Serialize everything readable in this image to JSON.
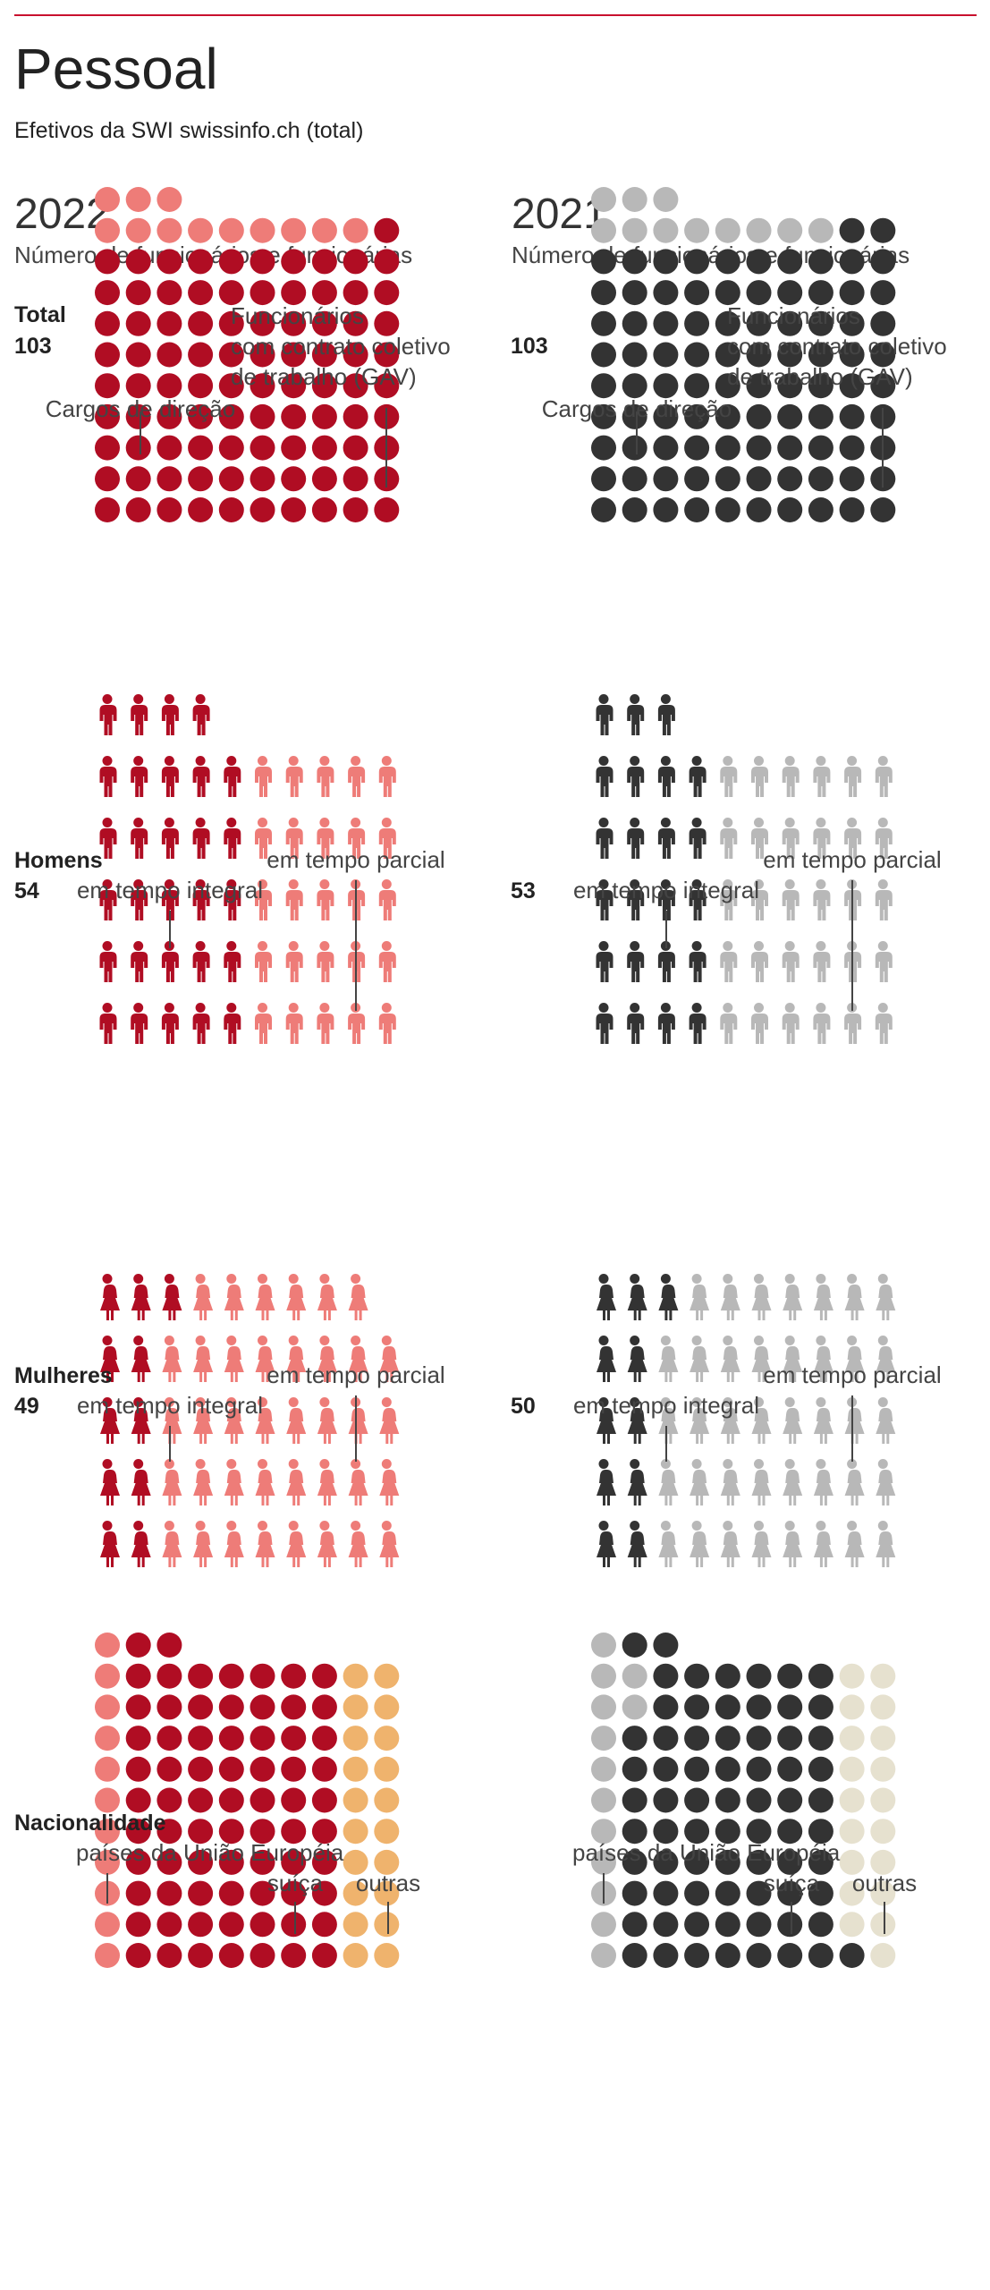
{
  "header": {
    "title": "Pessoal",
    "subtitle": "Efetivos da SWI swissinfo.ch (total)"
  },
  "colors": {
    "accent_2022": "#b00d23",
    "light_2022": "#ee7c78",
    "accent_2021": "#333333",
    "light_2021": "#b8b8b8",
    "others_2022": "#efb36d",
    "others_2021": "#e6e1cf",
    "rule": "#c8102e"
  },
  "chart_data": [
    {
      "type": "icon-array",
      "year": "2022",
      "year_label": "2022",
      "year_subtitle": "Número de funcionários e funcionárias",
      "sections": [
        {
          "id": "total",
          "heading": "Total",
          "value_label": "103",
          "icon": "circle",
          "total": 103,
          "groups": [
            {
              "label": "Cargos de direção",
              "count": 12,
              "color": "light"
            },
            {
              "label": "Funcionários com contrato coletivo de trabalho (GAV)",
              "label_lines": [
                "Funcionários",
                "com contrato coletivo",
                "de trabalho (GAV)"
              ],
              "count": 91,
              "color": "accent"
            }
          ]
        },
        {
          "id": "men",
          "heading": "Homens",
          "value_label": "54",
          "icon": "man",
          "total": 54,
          "groups": [
            {
              "label": "em tempo integral",
              "count": 29,
              "color": "accent"
            },
            {
              "label": "em tempo parcial",
              "count": 25,
              "color": "light"
            }
          ]
        },
        {
          "id": "women",
          "heading": "Mulheres",
          "value_label": "49",
          "icon": "woman",
          "total": 49,
          "groups": [
            {
              "label": "em tempo integral",
              "count": 11,
              "color": "accent"
            },
            {
              "label": "em tempo parcial",
              "count": 38,
              "color": "light"
            }
          ]
        },
        {
          "id": "nationality",
          "heading": "Nacionalidade",
          "value_label": "",
          "icon": "circle",
          "total": 103,
          "groups": [
            {
              "label": "países da União Européia",
              "count": 11,
              "color": "light"
            },
            {
              "label": "suíça",
              "count": 72,
              "color": "accent"
            },
            {
              "label": "outras",
              "count": 20,
              "color": "others"
            }
          ]
        }
      ]
    },
    {
      "type": "icon-array",
      "year": "2021",
      "year_label": "2021",
      "year_subtitle": "Número de funcionários e funcionárias",
      "sections": [
        {
          "id": "total",
          "heading": "",
          "value_label": "103",
          "icon": "circle",
          "total": 103,
          "groups": [
            {
              "label": "Cargos de direção",
              "count": 11,
              "color": "light"
            },
            {
              "label": "Funcionários com contrato coletivo de trabalho (GAV)",
              "label_lines": [
                "Funcionários",
                "com contrato coletivo",
                "de trabalho (GAV)"
              ],
              "count": 92,
              "color": "accent"
            }
          ]
        },
        {
          "id": "men",
          "heading": "",
          "value_label": "53",
          "icon": "man",
          "total": 53,
          "groups": [
            {
              "label": "em tempo integral",
              "count": 23,
              "color": "accent"
            },
            {
              "label": "em tempo parcial",
              "count": 30,
              "color": "light"
            }
          ]
        },
        {
          "id": "women",
          "heading": "",
          "value_label": "50",
          "icon": "woman",
          "total": 50,
          "groups": [
            {
              "label": "em tempo integral",
              "count": 11,
              "color": "accent"
            },
            {
              "label": "em tempo parcial",
              "count": 39,
              "color": "light"
            }
          ]
        },
        {
          "id": "nationality",
          "heading": "",
          "value_label": "",
          "icon": "circle",
          "total": 103,
          "groups": [
            {
              "label": "países da União Européia",
              "count": 13,
              "color": "light"
            },
            {
              "label": "suíça",
              "count": 71,
              "color": "accent"
            },
            {
              "label": "outras",
              "count": 19,
              "color": "others"
            }
          ]
        }
      ]
    }
  ]
}
